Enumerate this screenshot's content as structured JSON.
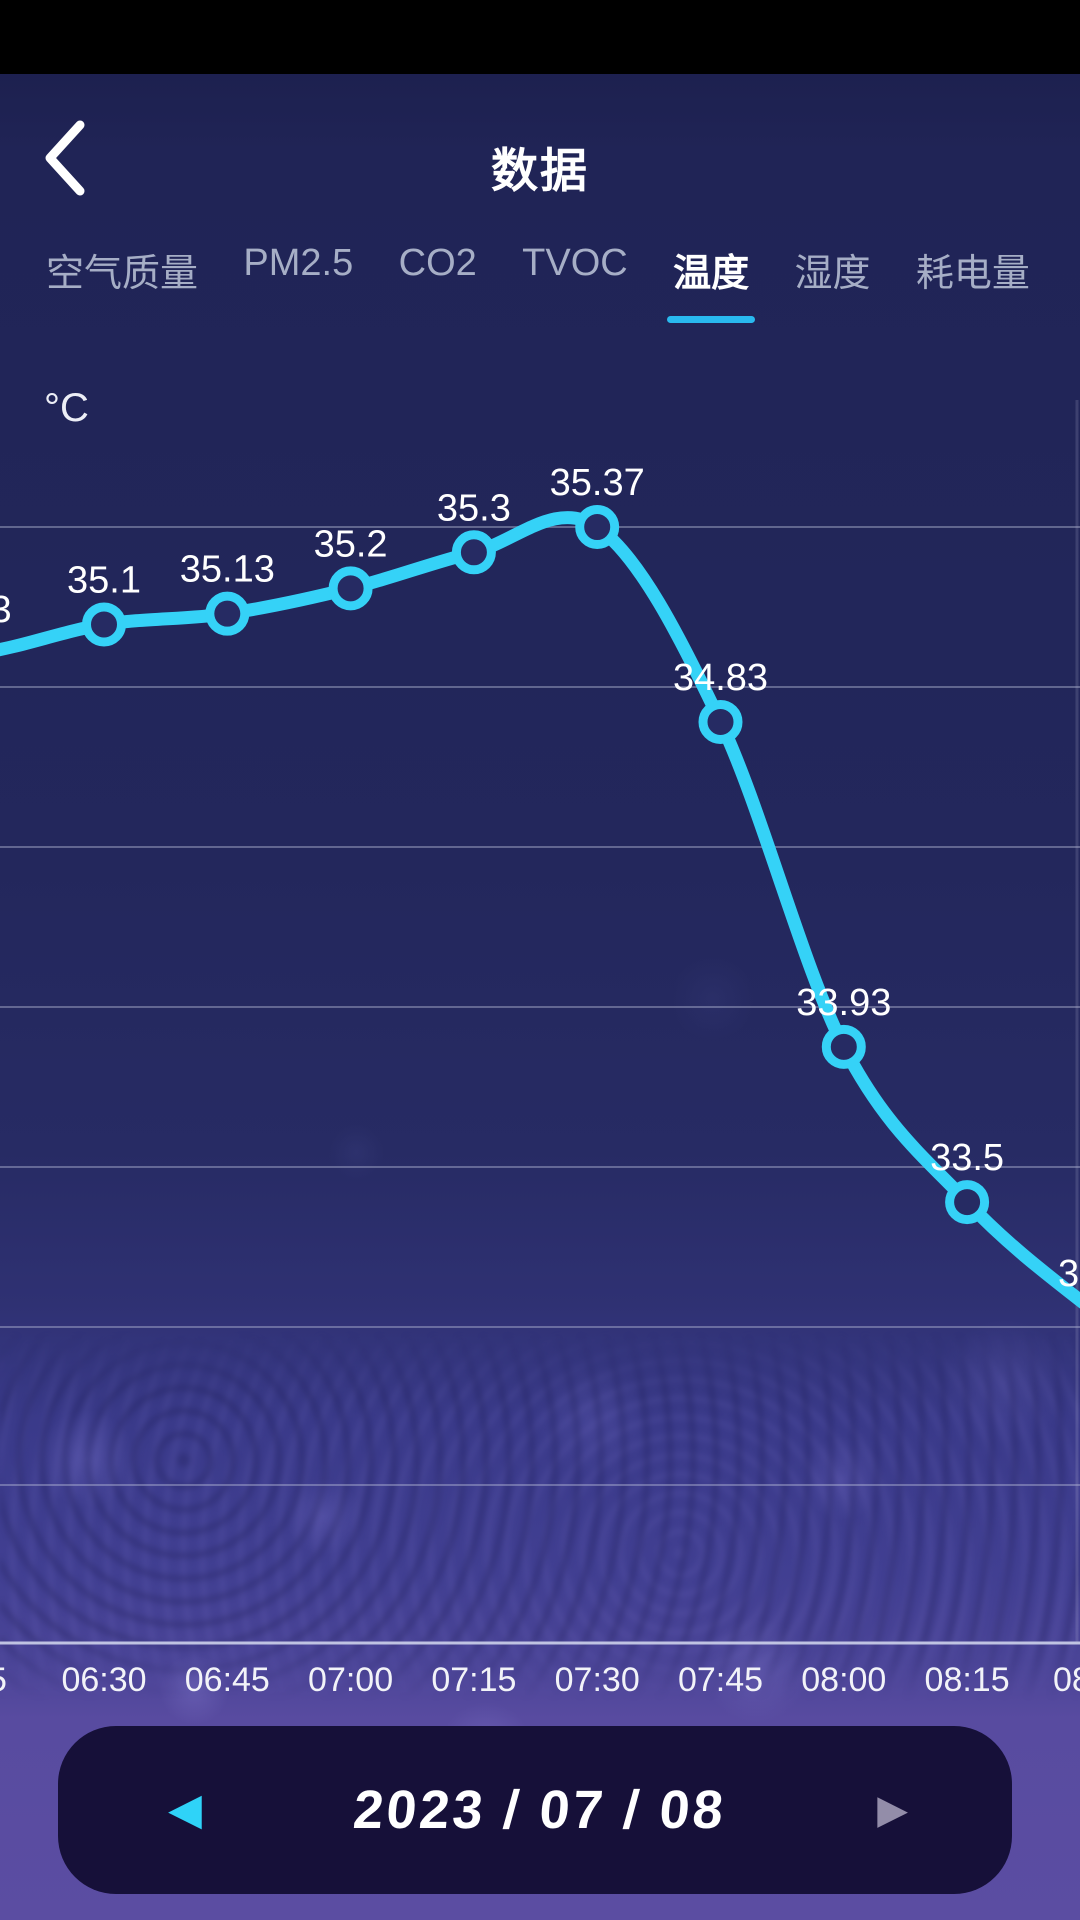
{
  "header": {
    "title": "数据"
  },
  "tabs": {
    "items": [
      {
        "label": "空气质量",
        "active": false
      },
      {
        "label": "PM2.5",
        "active": false
      },
      {
        "label": "CO2",
        "active": false
      },
      {
        "label": "TVOC",
        "active": false
      },
      {
        "label": "温度",
        "active": true
      },
      {
        "label": "湿度",
        "active": false
      },
      {
        "label": "耗电量",
        "active": false
      }
    ]
  },
  "chart_data": {
    "type": "line",
    "title": "",
    "unit_label": "°C",
    "ylabel": "°C",
    "xlabel": "",
    "categories": [
      "06:30",
      "06:45",
      "07:00",
      "07:15",
      "07:30",
      "07:45",
      "08:00",
      "08:15"
    ],
    "values": [
      35.1,
      35.13,
      35.2,
      35.3,
      35.37,
      34.83,
      33.93,
      33.5
    ],
    "series": [
      {
        "name": "温度",
        "values": [
          35.1,
          35.13,
          35.2,
          35.3,
          35.37,
          34.83,
          33.93,
          33.5
        ]
      }
    ],
    "edge_fragments": {
      "left_value": "3",
      "right_value": "3",
      "left_time": "5",
      "right_time": "08"
    },
    "grid": true,
    "legend_position": "none",
    "line_color": "#35d2f7",
    "point_fill": "#262b63"
  },
  "date_picker": {
    "value": "2023 / 07 / 08",
    "prev_icon": "left-triangle",
    "next_icon": "right-triangle"
  },
  "colors": {
    "accent_cyan": "#35d2f7",
    "tab_underline": "#29b9ef",
    "tab_inactive": "#a6aec6",
    "background_top": "#20245a",
    "background_bottom": "#5b4da2",
    "pill_background": "#161039"
  }
}
